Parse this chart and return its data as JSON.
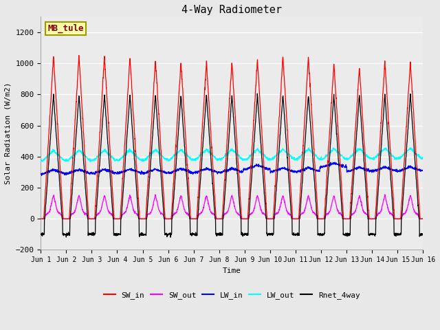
{
  "title": "4-Way Radiometer",
  "xlabel": "Time",
  "ylabel": "Solar Radiation (W/m2)",
  "ylim": [
    -200,
    1300
  ],
  "yticks": [
    -200,
    0,
    200,
    400,
    600,
    800,
    1000,
    1200
  ],
  "station_label": "MB_tule",
  "num_days": 15,
  "sw_in_peaks": [
    1050,
    1050,
    1050,
    1040,
    1025,
    1010,
    1010,
    1010,
    1020,
    1050,
    1040,
    1000,
    975,
    1010,
    1010
  ],
  "colors": {
    "SW_in": "#FF0000",
    "SW_out": "#FF00FF",
    "LW_in": "#0000FF",
    "LW_out": "#00FFFF",
    "Rnet_4way": "#000000"
  },
  "bg_color": "#E8E8E8",
  "plot_bg_color": "#EBEBEB",
  "grid_color": "#FFFFFF",
  "xtick_labels": [
    "Jun 1",
    "Jun 2",
    "Jun 3",
    "Jun 4",
    "Jun 5",
    "Jun 6",
    "Jun 7",
    "Jun 8",
    "Jun 9",
    "Jun 10",
    "Jun 11",
    "Jun 12",
    "Jun 13",
    "Jun 14",
    "Jun 15",
    "Jun 16"
  ],
  "station_box_color": "#FFFFAA",
  "station_box_edge": "#999900"
}
